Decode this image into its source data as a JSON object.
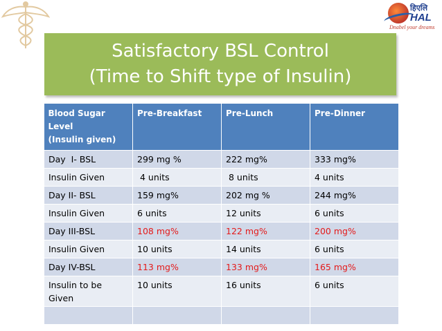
{
  "title": {
    "line1": "Satisfactory BSL Control",
    "line2": "(Time to Shift type of Insulin)"
  },
  "logo": {
    "hindi": "हिएलि",
    "name": "HAL",
    "tagline": "Dnabel your dreams"
  },
  "colors": {
    "title_bg": "#9bbb59",
    "header_bg": "#4f81bd",
    "row_odd": "#d0d8e8",
    "row_even": "#e9edf4",
    "highlight": "#e41a1a"
  },
  "table": {
    "headers": [
      "Blood Sugar Level (Insulin given)",
      "Pre-Breakfast",
      "Pre-Lunch",
      "Pre-Dinner"
    ],
    "header_lines": [
      "Blood Sugar",
      "Level",
      "(Insulin given)"
    ],
    "rows": [
      {
        "cells": [
          "Day  I- BSL",
          "299 mg %",
          "222 mg%",
          "333 mg%"
        ],
        "highlight": false
      },
      {
        "cells": [
          "Insulin Given",
          " 4 units",
          " 8 units",
          "4 units"
        ],
        "highlight": false
      },
      {
        "cells": [
          "Day II- BSL",
          "159 mg%",
          "202 mg %",
          "244 mg%"
        ],
        "highlight": false
      },
      {
        "cells": [
          "Insulin Given",
          "6 units",
          "12 units",
          "6 units"
        ],
        "highlight": false
      },
      {
        "cells": [
          "Day III-BSL",
          "108 mg%",
          "122 mg%",
          "200 mg%"
        ],
        "highlight": true
      },
      {
        "cells": [
          "Insulin Given",
          "10 units",
          "14 units",
          "6 units"
        ],
        "highlight": false
      },
      {
        "cells": [
          "Day IV-BSL",
          "113 mg%",
          "133 mg%",
          "165 mg%"
        ],
        "highlight": true
      },
      {
        "cells": [
          "Insulin to be Given",
          "10 units",
          "16 units",
          "6 units"
        ],
        "highlight": false
      },
      {
        "cells": [
          "",
          "",
          "",
          ""
        ],
        "highlight": false
      }
    ]
  }
}
